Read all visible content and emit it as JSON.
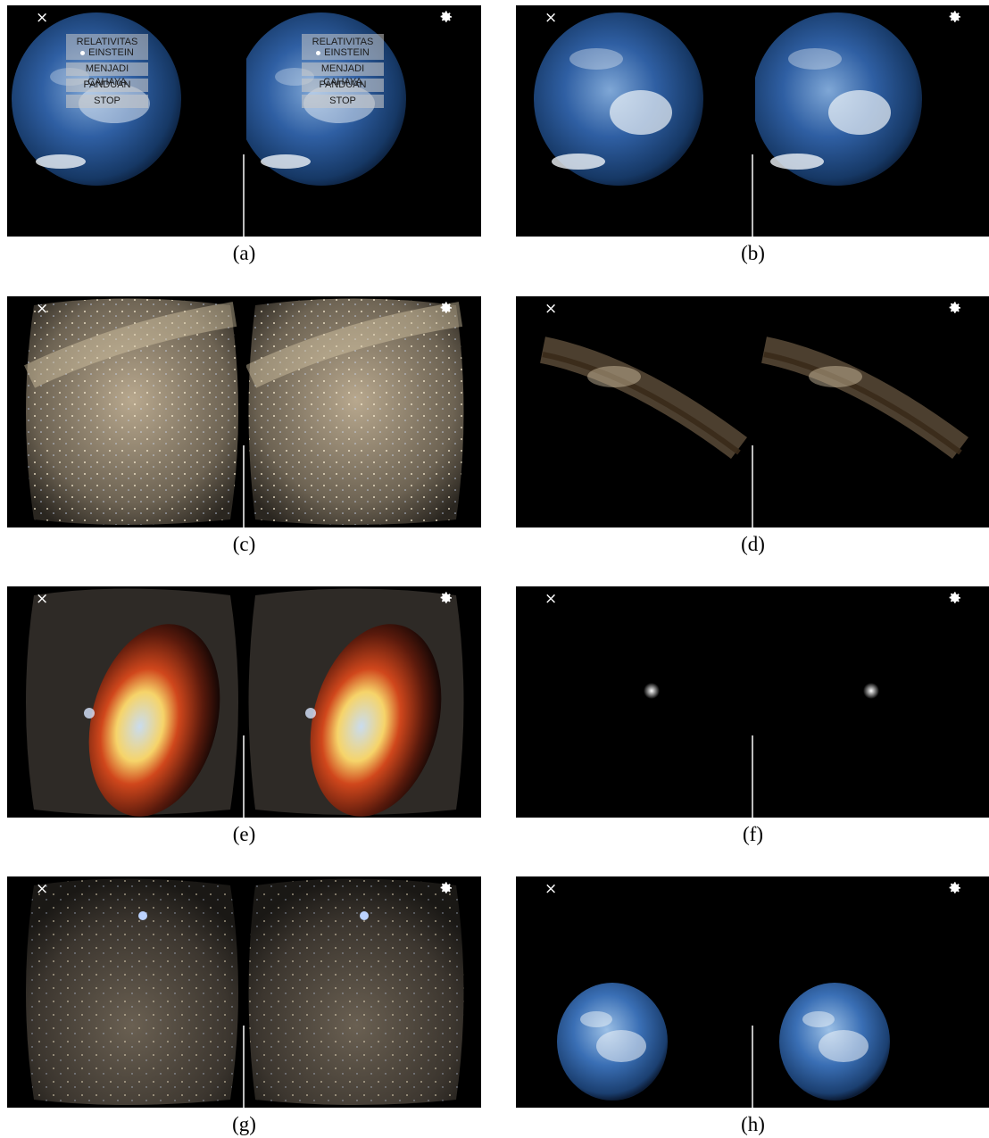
{
  "panels": [
    {
      "caption": "(a)",
      "scene": "earth-menu"
    },
    {
      "caption": "(b)",
      "scene": "earth-close"
    },
    {
      "caption": "(c)",
      "scene": "star-field"
    },
    {
      "caption": "(d)",
      "scene": "galaxy-band"
    },
    {
      "caption": "(e)",
      "scene": "accretion-disk"
    },
    {
      "caption": "(f)",
      "scene": "distant-point"
    },
    {
      "caption": "(g)",
      "scene": "star-field-dark"
    },
    {
      "caption": "(h)",
      "scene": "earth-far"
    }
  ],
  "menu": {
    "title_line1": "RELATIVITAS",
    "title_line2": "EINSTEIN",
    "items": [
      "MENJADI CAHAYA",
      "PANDUAN",
      "STOP"
    ]
  },
  "icons": {
    "close": "×",
    "settings": "gear-icon"
  },
  "colors": {
    "background": "#000000",
    "divider": "#bdbdbd",
    "menu_bg": "rgba(200,200,200,0.6)"
  }
}
